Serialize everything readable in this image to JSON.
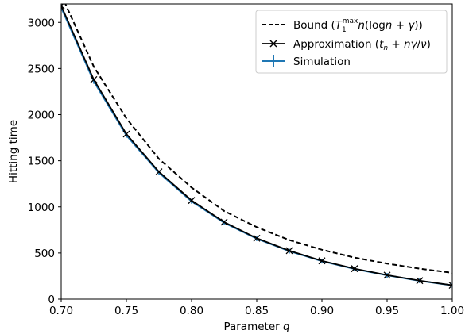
{
  "chart_data": {
    "type": "line",
    "xlabel": "Parameter q",
    "ylabel": "Hitting time",
    "xlim": [
      0.7,
      1.0
    ],
    "ylim": [
      0,
      3200
    ],
    "x_ticks": [
      "0.70",
      "0.75",
      "0.80",
      "0.85",
      "0.90",
      "0.95",
      "1.00"
    ],
    "y_ticks": [
      "0",
      "500",
      "1000",
      "1500",
      "2000",
      "2500",
      "3000"
    ],
    "legend_position": "top-right",
    "legend": [
      "Bound (T₁ᵐᵃˣn(log n + γ))",
      "Approximation (tₙ + nγ/ν)",
      "Simulation"
    ],
    "series": [
      {
        "name": "Bound (T₁ᵐᵃˣn(log n + γ))",
        "style": "dashed",
        "color": "#000000",
        "x": [
          0.7,
          0.725,
          0.75,
          0.775,
          0.8,
          0.825,
          0.85,
          0.875,
          0.9,
          0.925,
          0.95,
          0.975,
          1.0
        ],
        "y": [
          3300,
          2520,
          1960,
          1520,
          1210,
          955,
          780,
          640,
          535,
          450,
          385,
          330,
          285
        ]
      },
      {
        "name": "Approximation (tₙ + nγ/ν)",
        "style": "solid-x-markers",
        "color": "#000000",
        "x": [
          0.7,
          0.725,
          0.75,
          0.775,
          0.8,
          0.825,
          0.85,
          0.875,
          0.9,
          0.925,
          0.95,
          0.975,
          1.0
        ],
        "y": [
          3180,
          2380,
          1790,
          1380,
          1070,
          835,
          660,
          525,
          415,
          330,
          260,
          200,
          150
        ]
      },
      {
        "name": "Simulation",
        "style": "solid-errorbar",
        "color": "#1f77b4",
        "x": [
          0.7,
          0.725,
          0.75,
          0.775,
          0.8,
          0.825,
          0.85,
          0.875,
          0.9,
          0.925,
          0.95,
          0.975,
          1.0
        ],
        "y": [
          3160,
          2360,
          1775,
          1370,
          1060,
          828,
          655,
          520,
          412,
          327,
          258,
          198,
          148
        ]
      }
    ]
  }
}
